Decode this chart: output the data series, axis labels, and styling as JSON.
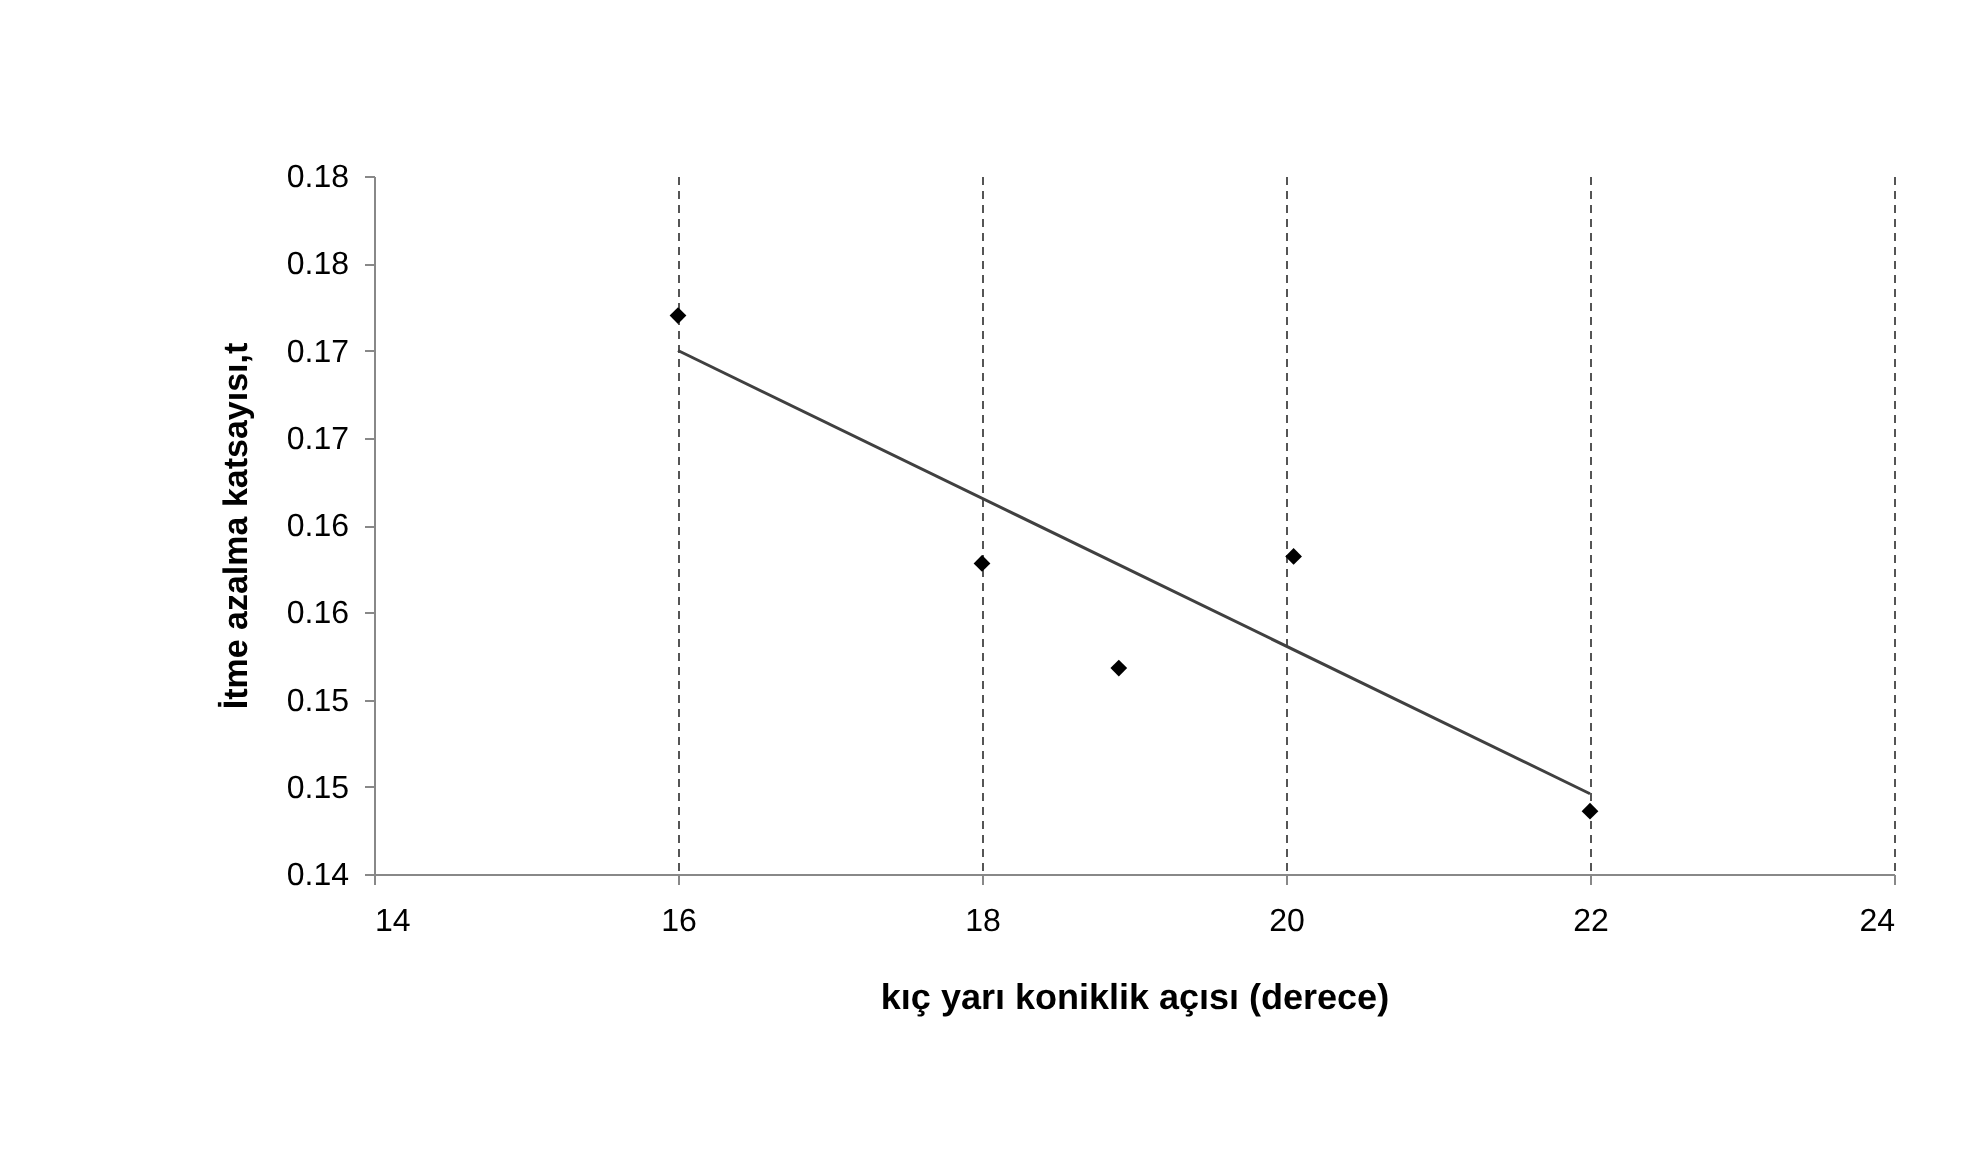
{
  "chart_data": {
    "type": "scatter",
    "xlabel": "kıç yarı koniklik açısı (derece)",
    "ylabel": "İtme azalma katsayısı,t",
    "xlim": [
      14,
      24
    ],
    "xticks": [
      14,
      16,
      18,
      20,
      22,
      24
    ],
    "ylim": [
      0.14,
      0.18
    ],
    "yticks": [
      {
        "value": 0.14,
        "label": "0.14"
      },
      {
        "value": 0.145,
        "label": "0.15"
      },
      {
        "value": 0.15,
        "label": "0.15"
      },
      {
        "value": 0.155,
        "label": "0.16"
      },
      {
        "value": 0.16,
        "label": "0.16"
      },
      {
        "value": 0.165,
        "label": "0.17"
      },
      {
        "value": 0.17,
        "label": "0.17"
      },
      {
        "value": 0.175,
        "label": "0.18"
      },
      {
        "value": 0.18,
        "label": "0.18"
      }
    ],
    "grid": "x",
    "marker": "diamond",
    "series": [
      {
        "color": "#000000",
        "x": [
          16,
          18,
          18.9,
          20.05,
          22
        ],
        "values": [
          0.172,
          0.1578,
          0.1518,
          0.1582,
          0.1436
        ]
      },
      {
        "type": "line",
        "color": "#404040",
        "marker": "none",
        "line_style": "solid",
        "x": [
          16,
          22
        ],
        "values": [
          0.17,
          0.1446
        ]
      }
    ]
  }
}
